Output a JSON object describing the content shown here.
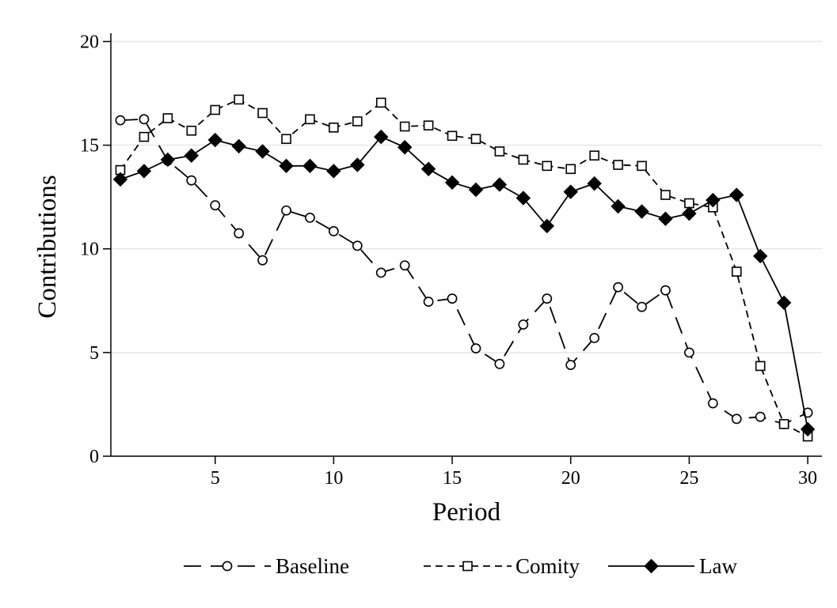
{
  "chart_data": {
    "type": "line",
    "title": "",
    "xlabel": "Period",
    "ylabel": "Contributions",
    "xlim": [
      0.6,
      30.6
    ],
    "ylim": [
      0,
      20.4
    ],
    "grid": "horizontal",
    "legend_position": "bottom",
    "x_ticks": [
      5,
      10,
      15,
      20,
      25,
      30
    ],
    "x_tick_labels": [
      "5",
      "10",
      "15",
      "20",
      "25",
      "30"
    ],
    "y_ticks": [
      0,
      5,
      10,
      15,
      20
    ],
    "y_tick_labels": [
      "0",
      "5",
      "10",
      "15",
      "20"
    ],
    "x": [
      1,
      2,
      3,
      4,
      5,
      6,
      7,
      8,
      9,
      10,
      11,
      12,
      13,
      14,
      15,
      16,
      17,
      18,
      19,
      20,
      21,
      22,
      23,
      24,
      25,
      26,
      27,
      28,
      29,
      30
    ],
    "series": [
      {
        "name": "Baseline",
        "line": "long-dash",
        "marker": "hollow-circle",
        "color": "#000000",
        "values": [
          16.2,
          16.25,
          14.25,
          13.3,
          12.1,
          10.75,
          9.45,
          11.85,
          11.5,
          10.85,
          10.15,
          8.85,
          9.2,
          7.45,
          7.6,
          5.2,
          4.45,
          6.35,
          7.6,
          4.4,
          5.7,
          8.15,
          7.2,
          8.0,
          5.0,
          2.55,
          1.8,
          1.9,
          1.55,
          2.1
        ]
      },
      {
        "name": "Comity",
        "line": "short-dash",
        "marker": "hollow-square",
        "color": "#000000",
        "values": [
          13.8,
          15.4,
          16.3,
          15.7,
          16.7,
          17.2,
          16.55,
          15.3,
          16.25,
          15.85,
          16.15,
          17.05,
          15.9,
          15.95,
          15.45,
          15.3,
          14.7,
          14.3,
          14.0,
          13.85,
          14.5,
          14.05,
          14.0,
          12.6,
          12.2,
          12.0,
          8.9,
          4.35,
          1.55,
          0.95
        ]
      },
      {
        "name": "Law",
        "line": "solid",
        "marker": "filled-diamond",
        "color": "#000000",
        "values": [
          13.35,
          13.75,
          14.3,
          14.5,
          15.25,
          14.95,
          14.7,
          14.0,
          14.0,
          13.75,
          14.05,
          15.4,
          14.9,
          13.85,
          13.2,
          12.85,
          13.1,
          12.45,
          11.1,
          12.75,
          13.15,
          12.05,
          11.8,
          11.45,
          11.7,
          12.35,
          12.6,
          9.65,
          7.4,
          1.3
        ]
      }
    ]
  }
}
